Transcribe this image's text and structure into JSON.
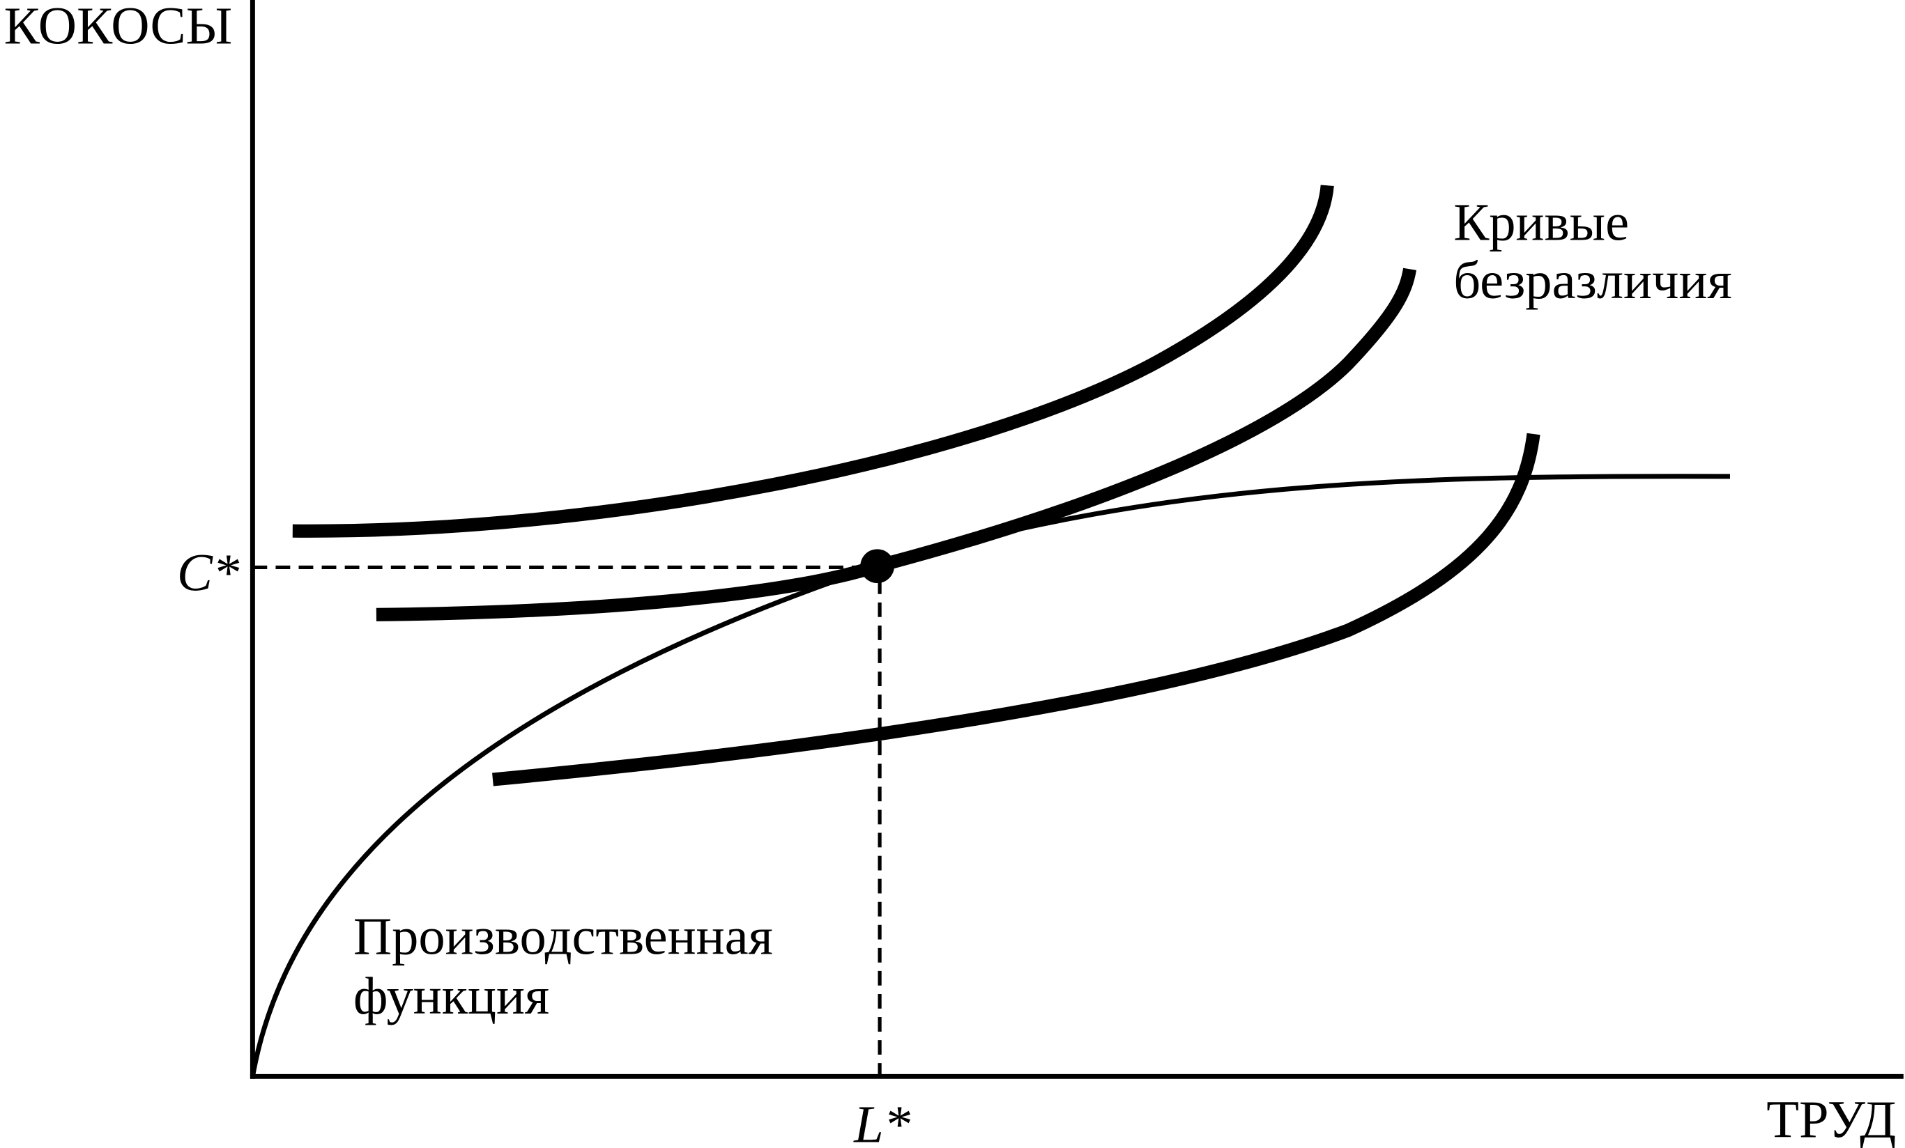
{
  "axes": {
    "y_label": "КОКОСЫ",
    "x_label": "ТРУД"
  },
  "equilibrium": {
    "c_label": "C*",
    "l_label": "L*"
  },
  "labels": {
    "indifference_curves": [
      "Кривые",
      "безразличия"
    ],
    "production_function": [
      "Производственная",
      "функция"
    ]
  }
}
